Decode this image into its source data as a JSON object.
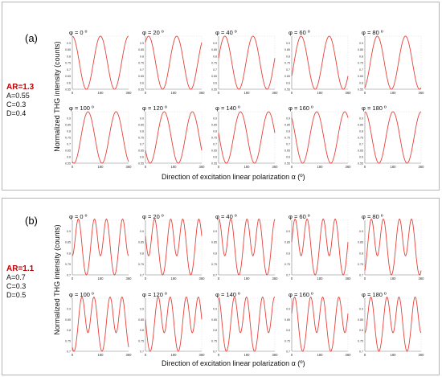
{
  "panels": [
    {
      "label": "(a)",
      "params": {
        "ar": "AR=1.3",
        "a": "A=0.55",
        "c": "C=0.3",
        "d": "D=0.4"
      },
      "ylabel": "Normalized THG intensity (counts)",
      "xlabel": "Direction of excitation linear polarization α (º)"
    },
    {
      "label": "(b)",
      "params": {
        "ar": "AR=1.1",
        "a": "A=0.7",
        "c": "C=0.3",
        "d": "D=0.5"
      },
      "ylabel": "Normalized THG intensity (counts)",
      "xlabel": "Direction of excitation linear polarization α (º)"
    }
  ],
  "chart_data": [
    {
      "type": "line",
      "panel": "(a)",
      "small_multiples": [
        "φ = 0 º",
        "φ = 20 º",
        "φ = 40 º",
        "φ = 60 º",
        "φ = 80 º",
        "φ = 100 º",
        "φ = 120 º",
        "φ = 140 º",
        "φ = 160 º",
        "φ = 180 º"
      ],
      "phi_deg": [
        0,
        20,
        40,
        60,
        80,
        100,
        120,
        140,
        160,
        180
      ],
      "x_ticks": [
        "0",
        "180",
        "360"
      ],
      "xlim": [
        0,
        360
      ],
      "y_ticks": [
        "0.55",
        "0.6",
        "0.65",
        "0.7",
        "0.75",
        "0.8",
        "0.85",
        "0.9"
      ],
      "ylim": [
        0.55,
        0.95
      ],
      "curve_min": 0.55,
      "curve_max": 0.95,
      "period_deg": 180,
      "color": "#e8413a",
      "grid": false
    },
    {
      "type": "line",
      "panel": "(b)",
      "small_multiples": [
        "φ = 0 º",
        "φ = 20 º",
        "φ = 40 º",
        "φ = 60 º",
        "φ = 80 º",
        "φ = 100 º",
        "φ = 120 º",
        "φ = 140 º",
        "φ = 160 º",
        "φ = 180 º"
      ],
      "phi_deg": [
        0,
        20,
        40,
        60,
        80,
        100,
        120,
        140,
        160,
        180
      ],
      "x_ticks": [
        "0",
        "180",
        "360"
      ],
      "xlim": [
        0,
        360
      ],
      "y_ticks": [
        "0.7",
        "0.75",
        "0.8",
        "0.85",
        "0.9"
      ],
      "ylim": [
        0.7,
        0.95
      ],
      "curve_min": 0.7,
      "curve_max": 0.93,
      "dip_level": 0.86,
      "period_deg": 180,
      "color": "#e8413a",
      "grid": false
    }
  ]
}
